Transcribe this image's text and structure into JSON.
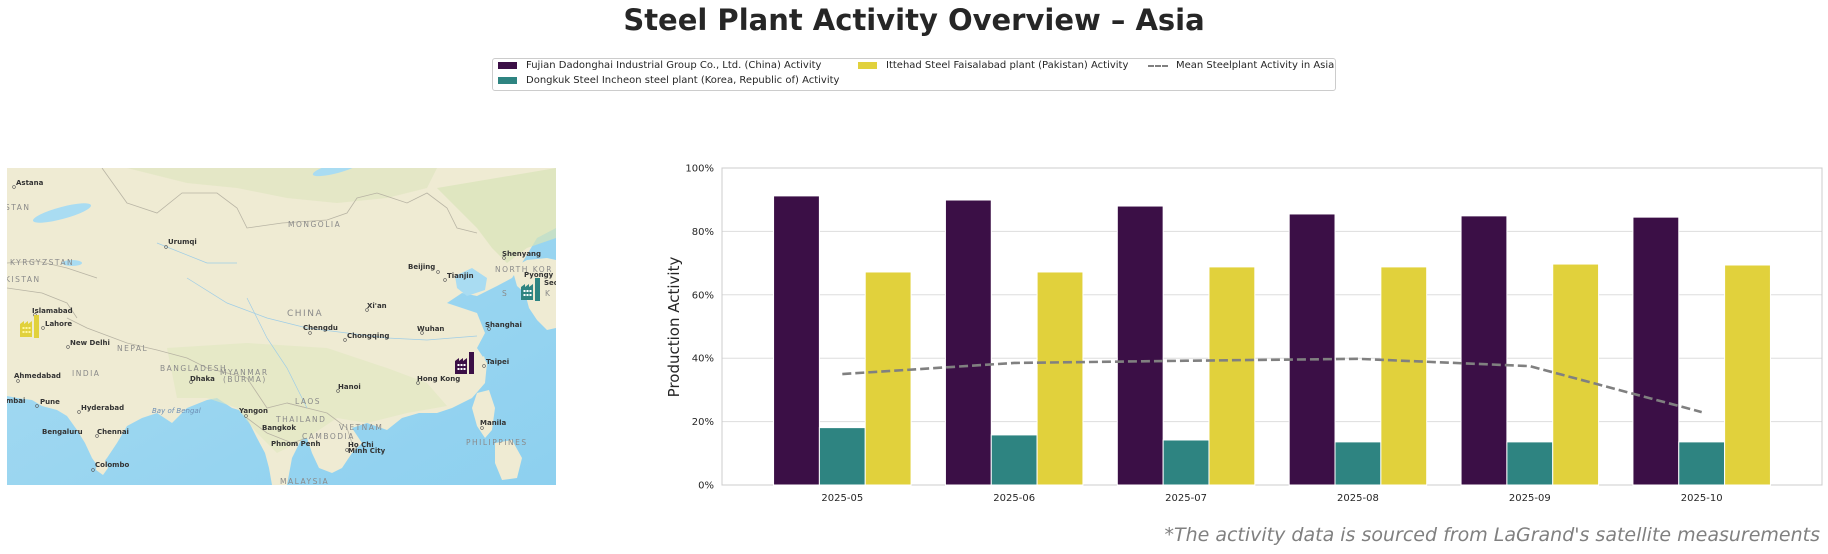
{
  "title": "Steel Plant Activity Overview – Asia",
  "legend": {
    "items": [
      {
        "label": "Fujian Dadonghai Industrial Group Co., Ltd. (China) Activity",
        "type": "bar",
        "color": "#3b0f46"
      },
      {
        "label": "Dongkuk Steel Incheon steel plant (Korea, Republic of) Activity",
        "type": "bar",
        "color": "#2e8481"
      },
      {
        "label": "Ittehad Steel Faisalabad plant (Pakistan) Activity",
        "type": "bar",
        "color": "#e1d13c"
      },
      {
        "label": "Mean Steelplant Activity in Asia",
        "type": "dashed-line",
        "color": "#808080"
      }
    ]
  },
  "map": {
    "labels": {
      "cities": [
        "Astana",
        "Urumqi",
        "Islamabad",
        "Lahore",
        "New Delhi",
        "Ahmedabad",
        "mbai",
        "Pune",
        "Hyderabad",
        "Bengaluru",
        "Chennai",
        "Colombo",
        "Dhaka",
        "Yangon",
        "Bangkok",
        "Phnom Penh",
        "Ho Chi",
        "Minh City",
        "Hanoi",
        "Chengdu",
        "Chongqing",
        "Xi'an",
        "Wuhan",
        "Beijing",
        "Tianjin",
        "Shenyang",
        "Pyongy",
        "Seou",
        "Shanghai",
        "Taipei",
        "Hong Kong",
        "Manila"
      ],
      "countries": [
        "STAN",
        "KYRGYZSTAN",
        "KISTAN",
        "NEPAL",
        "INDIA",
        "BANGLADESH",
        "MYANMAR",
        "(BURMA)",
        "THAILAND",
        "LAOS",
        "CAMBODIA",
        "VIETNAM",
        "MALAYSIA",
        "PHILIPPINES",
        "CHINA",
        "MONGOLIA",
        "NORTH KOR",
        "S",
        "K"
      ],
      "water": [
        "Bay of Bengal"
      ]
    },
    "markers": [
      {
        "plant": "Fujian Dadonghai Industrial Group Co., Ltd. (China)",
        "icon": "factory-icon",
        "color": "#3b0f46"
      },
      {
        "plant": "Dongkuk Steel Incheon steel plant (Korea, Republic of)",
        "icon": "factory-icon",
        "color": "#2e8481"
      },
      {
        "plant": "Ittehad Steel Faisalabad plant (Pakistan)",
        "icon": "factory-icon",
        "color": "#e1d13c"
      }
    ]
  },
  "chart_data": {
    "type": "bar",
    "title": "Steel Plant Activity Overview – Asia",
    "xlabel": "",
    "ylabel": "Production Activity",
    "categories": [
      "2025-05",
      "2025-06",
      "2025-07",
      "2025-08",
      "2025-09",
      "2025-10"
    ],
    "ylim": [
      0,
      100
    ],
    "yticks": [
      "0%",
      "20%",
      "40%",
      "60%",
      "80%",
      "100%"
    ],
    "ytick_values": [
      0,
      20,
      40,
      60,
      80,
      100
    ],
    "grid": true,
    "legend_position": "top-center",
    "series": [
      {
        "name": "Fujian Dadonghai Industrial Group Co., Ltd. (China) Activity",
        "type": "bar",
        "color": "#3b0f46",
        "values": [
          91.2,
          89.9,
          88.0,
          85.5,
          84.9,
          84.5
        ]
      },
      {
        "name": "Dongkuk Steel Incheon steel plant (Korea, Republic of) Activity",
        "type": "bar",
        "color": "#2e8481",
        "values": [
          18.1,
          15.8,
          14.2,
          13.6,
          13.6,
          13.6
        ]
      },
      {
        "name": "Ittehad Steel Faisalabad plant (Pakistan) Activity",
        "type": "bar",
        "color": "#e1d13c",
        "values": [
          67.2,
          67.2,
          68.8,
          68.8,
          69.7,
          69.4
        ]
      },
      {
        "name": "Mean Steelplant Activity in Asia",
        "type": "line",
        "style": "dashed",
        "color": "#808080",
        "values": [
          35.0,
          38.5,
          39.2,
          39.8,
          37.5,
          23.0
        ]
      }
    ]
  },
  "footnote": "*The activity data is sourced from LaGrand's satellite measurements"
}
